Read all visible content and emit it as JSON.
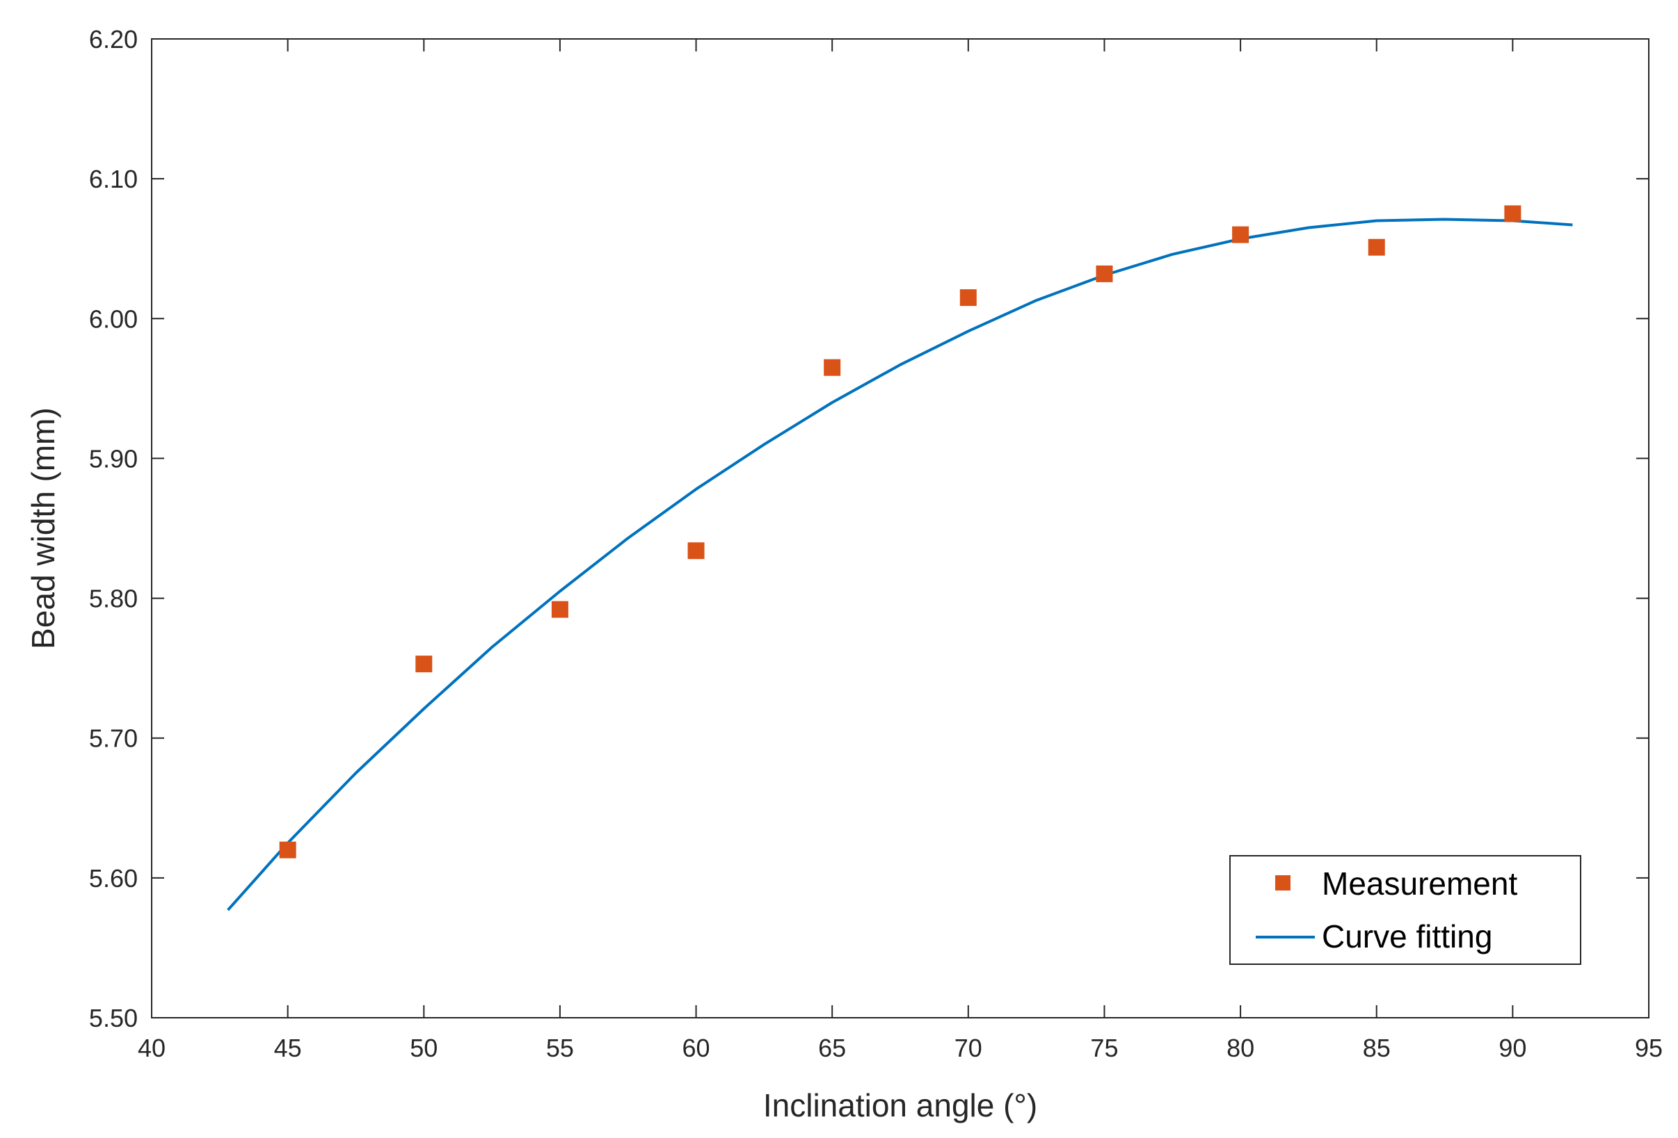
{
  "chart_data": {
    "type": "scatter",
    "title": "",
    "xlabel": "Inclination angle (°)",
    "ylabel": "Bead width (mm)",
    "xlim": [
      40,
      95
    ],
    "ylim": [
      5.5,
      6.2
    ],
    "xticks": [
      40,
      45,
      50,
      55,
      60,
      65,
      70,
      75,
      80,
      85,
      90,
      95
    ],
    "xtick_labels": [
      "40",
      "45",
      "50",
      "55",
      "60",
      "65",
      "70",
      "75",
      "80",
      "85",
      "90",
      "95"
    ],
    "yticks": [
      5.5,
      5.6,
      5.7,
      5.8,
      5.9,
      6.0,
      6.1,
      6.2
    ],
    "ytick_labels": [
      "5.50",
      "5.60",
      "5.70",
      "5.80",
      "5.90",
      "6.00",
      "6.10",
      "6.20"
    ],
    "grid": false,
    "legend_position": "bottom-right",
    "series": [
      {
        "name": "Measurement",
        "kind": "scatter",
        "marker": "square",
        "color": "#D95319",
        "x": [
          45,
          50,
          55,
          60,
          65,
          70,
          75,
          80,
          85,
          90
        ],
        "y": [
          5.62,
          5.753,
          5.792,
          5.834,
          5.965,
          6.015,
          6.032,
          6.06,
          6.051,
          6.075
        ]
      },
      {
        "name": "Curve fitting",
        "kind": "line",
        "color": "#0072BD",
        "x": [
          42.8,
          45,
          47.5,
          50,
          52.5,
          55,
          57.5,
          60,
          62.5,
          65,
          67.5,
          70,
          72.5,
          75,
          77.5,
          80,
          82.5,
          85,
          87.5,
          90,
          92.2
        ],
        "y": [
          5.577,
          5.625,
          5.675,
          5.721,
          5.765,
          5.805,
          5.843,
          5.878,
          5.91,
          5.94,
          5.967,
          5.991,
          6.013,
          6.031,
          6.046,
          6.057,
          6.065,
          6.07,
          6.071,
          6.07,
          6.067
        ]
      }
    ]
  }
}
